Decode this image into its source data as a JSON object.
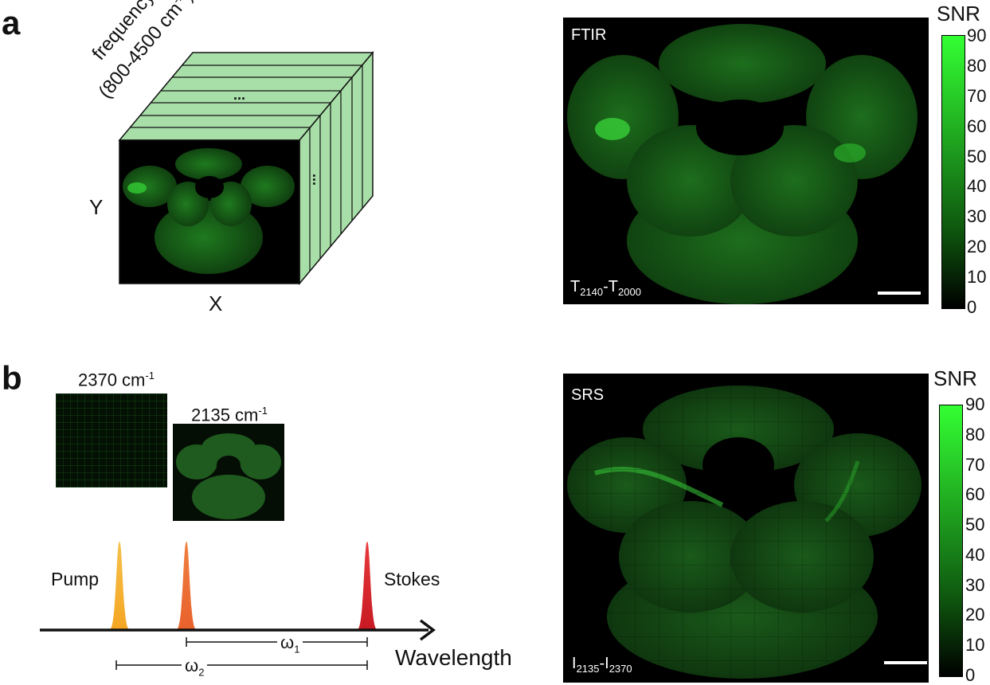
{
  "panel_a": {
    "letter": "a",
    "cube": {
      "axis_frequency_line1": "frequency",
      "axis_frequency_line2": "(800-4500 cm",
      "axis_frequency_sup": "-1",
      "axis_frequency_close": ")",
      "axis_y": "Y",
      "axis_x": "X",
      "ellipsis": "..."
    },
    "image": {
      "title": "FTIR",
      "formula_t1": "T",
      "formula_sub1": "2140",
      "formula_dash": "-T",
      "formula_sub2": "2000"
    },
    "colorbar": {
      "title": "SNR",
      "ticks": [
        "90",
        "80",
        "70",
        "60",
        "50",
        "40",
        "30",
        "20",
        "10",
        "0"
      ]
    }
  },
  "panel_b": {
    "letter": "b",
    "thumb1_label": "2370 cm",
    "thumb2_label": "2135 cm",
    "wavenumber_sup": "-1",
    "spectrum": {
      "pump": "Pump",
      "stokes": "Stokes",
      "axis": "Wavelength",
      "omega1": "ω",
      "omega1_sub": "1",
      "omega2": "ω",
      "omega2_sub": "2"
    },
    "image": {
      "title": "SRS",
      "formula_t1": "I",
      "formula_sub1": "2135",
      "formula_dash": "-I",
      "formula_sub2": "2370"
    },
    "colorbar": {
      "title": "SNR",
      "ticks": [
        "90",
        "80",
        "70",
        "60",
        "50",
        "40",
        "30",
        "20",
        "10",
        "0"
      ]
    }
  },
  "colors": {
    "cube_face": "#a8dfa8",
    "tissue_bright": "#33cc33",
    "pump_peak": "#f5a623",
    "middle_peak": "#e8612c",
    "stokes_peak": "#d91e2a"
  }
}
